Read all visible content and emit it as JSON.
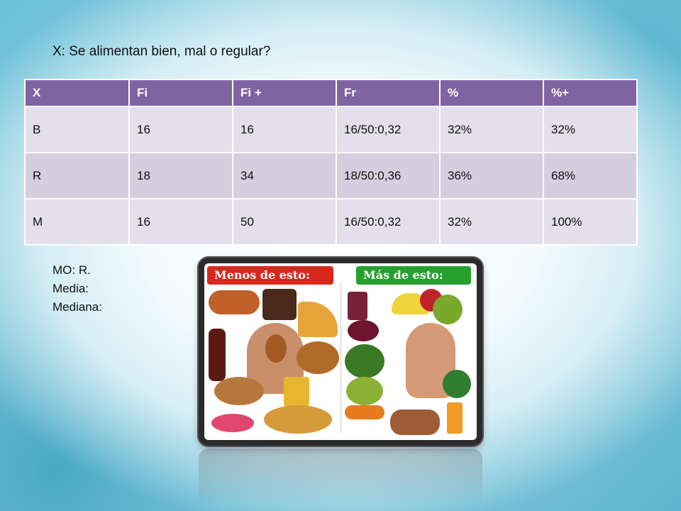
{
  "title": "X: Se alimentan bien, mal o regular?",
  "table": {
    "headers": [
      "X",
      "Fi",
      "Fi +",
      "Fr",
      "%",
      "%+"
    ],
    "rows": [
      [
        "B",
        "16",
        "16",
        "16/50:0,32",
        "32%",
        "32%"
      ],
      [
        "R",
        "18",
        "34",
        "18/50:0,36",
        "36%",
        "68%"
      ],
      [
        "M",
        "16",
        "50",
        "16/50:0,32",
        "32%",
        "100%"
      ]
    ]
  },
  "notes": {
    "mo": "MO: R.",
    "media": "Media:",
    "mediana": "Mediana:"
  },
  "picture": {
    "left_banner": "Menos de esto:",
    "right_banner": "Más de esto:"
  },
  "colors": {
    "header_bg": "#8064a2",
    "bad_banner": "#d8281e",
    "good_banner": "#25a02d"
  }
}
